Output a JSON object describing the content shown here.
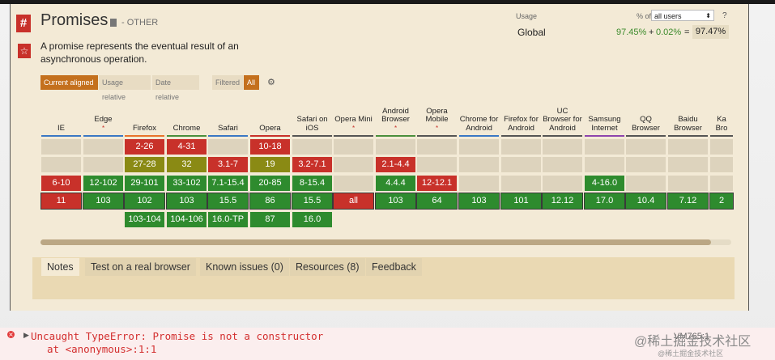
{
  "header": {
    "title": "Promises",
    "category": "- OTHER",
    "description": "A promise represents the eventual result of an asynchronous operation.",
    "hash_icon": "#",
    "star_icon": "☆"
  },
  "usage": {
    "label": "Usage",
    "of_label": "% of",
    "users_option": "all users",
    "help": "?",
    "region": "Global",
    "supported": "97.45%",
    "plus": "+",
    "partial": "0.02%",
    "equals": "=",
    "total": "97.47%"
  },
  "controls": {
    "current_aligned": "Current aligned",
    "usage_relative": "Usage relative",
    "date_relative": "Date relative",
    "filtered": "Filtered",
    "all": "All"
  },
  "browsers": [
    {
      "name": "IE",
      "asterisk": "",
      "bar": "#3b78c4",
      "rows": [
        {
          "v": "",
          "c": "blank"
        },
        {
          "v": "",
          "c": "blank"
        },
        {
          "v": "6-10",
          "c": "red"
        },
        {
          "v": "11",
          "c": "red"
        },
        {
          "v": "",
          "c": "none"
        }
      ]
    },
    {
      "name": "Edge",
      "asterisk": "*",
      "bar": "#3b78c4",
      "rows": [
        {
          "v": "",
          "c": "blank"
        },
        {
          "v": "",
          "c": "blank"
        },
        {
          "v": "12-102",
          "c": "green"
        },
        {
          "v": "103",
          "c": "green"
        },
        {
          "v": "",
          "c": "none"
        }
      ]
    },
    {
      "name": "Firefox",
      "asterisk": "",
      "bar": "#e8742a",
      "rows": [
        {
          "v": "2-26",
          "c": "red"
        },
        {
          "v": "27-28",
          "c": "olive"
        },
        {
          "v": "29-101",
          "c": "green"
        },
        {
          "v": "102",
          "c": "green"
        },
        {
          "v": "103-104",
          "c": "green"
        }
      ]
    },
    {
      "name": "Chrome",
      "asterisk": "",
      "bar": "#4a8f3c",
      "rows": [
        {
          "v": "4-31",
          "c": "red"
        },
        {
          "v": "32",
          "c": "olive"
        },
        {
          "v": "33-102",
          "c": "green"
        },
        {
          "v": "103",
          "c": "green"
        },
        {
          "v": "104-106",
          "c": "green"
        }
      ]
    },
    {
      "name": "Safari",
      "asterisk": "",
      "bar": "#3b78c4",
      "rows": [
        {
          "v": "",
          "c": "blank"
        },
        {
          "v": "3.1-7",
          "c": "red"
        },
        {
          "v": "7.1-15.4",
          "c": "green"
        },
        {
          "v": "15.5",
          "c": "green"
        },
        {
          "v": "16.0-TP",
          "c": "green"
        }
      ]
    },
    {
      "name": "Opera",
      "asterisk": "",
      "bar": "#c8312a",
      "rows": [
        {
          "v": "10-18",
          "c": "red"
        },
        {
          "v": "19",
          "c": "olive"
        },
        {
          "v": "20-85",
          "c": "green"
        },
        {
          "v": "86",
          "c": "green"
        },
        {
          "v": "87",
          "c": "green"
        }
      ]
    },
    {
      "name": "Safari on iOS",
      "asterisk": "",
      "bar": "#555555",
      "rows": [
        {
          "v": "",
          "c": "blank"
        },
        {
          "v": "3.2-7.1",
          "c": "red"
        },
        {
          "v": "8-15.4",
          "c": "green"
        },
        {
          "v": "15.5",
          "c": "green"
        },
        {
          "v": "16.0",
          "c": "green"
        }
      ]
    },
    {
      "name": "Opera Mini",
      "asterisk": "*",
      "bar": "#555555",
      "rows": [
        {
          "v": "",
          "c": "blank"
        },
        {
          "v": "",
          "c": "blank"
        },
        {
          "v": "",
          "c": "blank"
        },
        {
          "v": "all",
          "c": "red"
        },
        {
          "v": "",
          "c": "none"
        }
      ]
    },
    {
      "name": "Android Browser",
      "asterisk": "*",
      "bar": "#4a8f3c",
      "rows": [
        {
          "v": "",
          "c": "blank"
        },
        {
          "v": "2.1-4.4",
          "c": "red"
        },
        {
          "v": "4.4.4",
          "c": "green"
        },
        {
          "v": "103",
          "c": "green"
        },
        {
          "v": "",
          "c": "none"
        }
      ]
    },
    {
      "name": "Opera Mobile",
      "asterisk": "*",
      "bar": "#555555",
      "rows": [
        {
          "v": "",
          "c": "blank"
        },
        {
          "v": "",
          "c": "blank"
        },
        {
          "v": "12-12.1",
          "c": "red"
        },
        {
          "v": "64",
          "c": "green"
        },
        {
          "v": "",
          "c": "none"
        }
      ]
    },
    {
      "name": "Chrome for Android",
      "asterisk": "",
      "bar": "#3b78c4",
      "rows": [
        {
          "v": "",
          "c": "blank"
        },
        {
          "v": "",
          "c": "blank"
        },
        {
          "v": "",
          "c": "blank"
        },
        {
          "v": "103",
          "c": "green"
        },
        {
          "v": "",
          "c": "none"
        }
      ]
    },
    {
      "name": "Firefox for Android",
      "asterisk": "",
      "bar": "#555555",
      "rows": [
        {
          "v": "",
          "c": "blank"
        },
        {
          "v": "",
          "c": "blank"
        },
        {
          "v": "",
          "c": "blank"
        },
        {
          "v": "101",
          "c": "green"
        },
        {
          "v": "",
          "c": "none"
        }
      ]
    },
    {
      "name": "UC Browser for Android",
      "asterisk": "",
      "bar": "#555555",
      "rows": [
        {
          "v": "",
          "c": "blank"
        },
        {
          "v": "",
          "c": "blank"
        },
        {
          "v": "",
          "c": "blank"
        },
        {
          "v": "12.12",
          "c": "green"
        },
        {
          "v": "",
          "c": "none"
        }
      ]
    },
    {
      "name": "Samsung Internet",
      "asterisk": "",
      "bar": "#8e44ad",
      "rows": [
        {
          "v": "",
          "c": "blank"
        },
        {
          "v": "",
          "c": "blank"
        },
        {
          "v": "4-16.0",
          "c": "green"
        },
        {
          "v": "17.0",
          "c": "green"
        },
        {
          "v": "",
          "c": "none"
        }
      ]
    },
    {
      "name": "QQ Browser",
      "asterisk": "",
      "bar": "#555555",
      "rows": [
        {
          "v": "",
          "c": "blank"
        },
        {
          "v": "",
          "c": "blank"
        },
        {
          "v": "",
          "c": "blank"
        },
        {
          "v": "10.4",
          "c": "green"
        },
        {
          "v": "",
          "c": "none"
        }
      ]
    },
    {
      "name": "Baidu Browser",
      "asterisk": "",
      "bar": "#555555",
      "rows": [
        {
          "v": "",
          "c": "blank"
        },
        {
          "v": "",
          "c": "blank"
        },
        {
          "v": "",
          "c": "blank"
        },
        {
          "v": "7.12",
          "c": "green"
        },
        {
          "v": "",
          "c": "none"
        }
      ]
    },
    {
      "name": "Ka Bro",
      "asterisk": "",
      "bar": "#555555",
      "rows": [
        {
          "v": "",
          "c": "blank"
        },
        {
          "v": "",
          "c": "blank"
        },
        {
          "v": "",
          "c": "blank"
        },
        {
          "v": "2",
          "c": "green"
        },
        {
          "v": "",
          "c": "none"
        }
      ]
    }
  ],
  "tabs": [
    "Notes",
    "Test on a real browser",
    "Known issues (0)",
    "Resources (8)",
    "Feedback"
  ],
  "console": {
    "error_line": "Uncaught TypeError: Promise is not a constructor",
    "location_line": "at <anonymous>:1:1",
    "vm_link": "VM765:1"
  },
  "watermark": {
    "main": "@稀土掘金技术社区",
    "sub": "@稀土掘金技术社区"
  }
}
